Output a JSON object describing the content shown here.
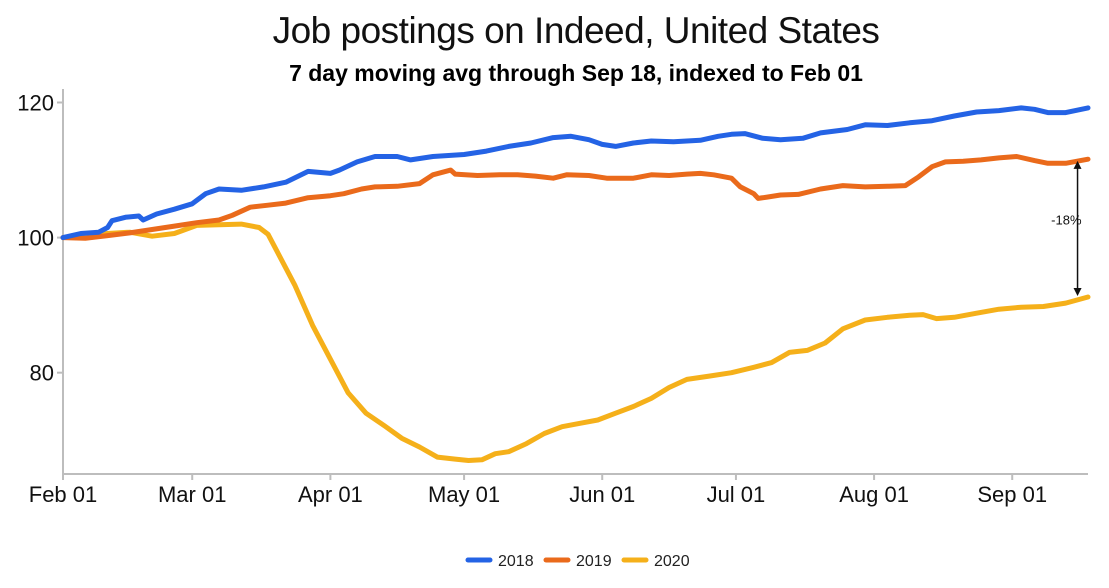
{
  "chart_data": {
    "type": "line",
    "title": "Job postings on Indeed, United States",
    "subtitle": "7 day moving avg through Sep 18, indexed to Feb 01",
    "xlabel": "",
    "ylabel": "",
    "x_range_days": [
      0,
      230
    ],
    "ylim": [
      65,
      122
    ],
    "x_ticks": [
      {
        "label": "Feb 01",
        "day": 0
      },
      {
        "label": "Mar 01",
        "day": 29
      },
      {
        "label": "Apr 01",
        "day": 60
      },
      {
        "label": "May 01",
        "day": 90
      },
      {
        "label": "Jun 01",
        "day": 121
      },
      {
        "label": "Jul 01",
        "day": 151
      },
      {
        "label": "Aug 01",
        "day": 182
      },
      {
        "label": "Sep 01",
        "day": 213
      }
    ],
    "y_ticks": [
      {
        "label": "80",
        "value": 80
      },
      {
        "label": "100",
        "value": 100
      },
      {
        "label": "120",
        "value": 120
      }
    ],
    "grid": false,
    "legend_position": "bottom",
    "series": [
      {
        "name": "2018",
        "color": "#2463e5",
        "points": [
          [
            0,
            100
          ],
          [
            4,
            100.6
          ],
          [
            8,
            100.8
          ],
          [
            10,
            101.5
          ],
          [
            11,
            102.5
          ],
          [
            14,
            103
          ],
          [
            17,
            103.2
          ],
          [
            18,
            102.6
          ],
          [
            21,
            103.5
          ],
          [
            25,
            104.2
          ],
          [
            29,
            105
          ],
          [
            32,
            106.5
          ],
          [
            35,
            107.2
          ],
          [
            40,
            107
          ],
          [
            45,
            107.5
          ],
          [
            50,
            108.2
          ],
          [
            55,
            109.8
          ],
          [
            60,
            109.5
          ],
          [
            62,
            110
          ],
          [
            66,
            111.2
          ],
          [
            70,
            112
          ],
          [
            75,
            112
          ],
          [
            78,
            111.5
          ],
          [
            83,
            112
          ],
          [
            90,
            112.3
          ],
          [
            95,
            112.8
          ],
          [
            100,
            113.5
          ],
          [
            105,
            114
          ],
          [
            110,
            114.8
          ],
          [
            114,
            115
          ],
          [
            118,
            114.5
          ],
          [
            121,
            113.8
          ],
          [
            124,
            113.5
          ],
          [
            128,
            114
          ],
          [
            132,
            114.3
          ],
          [
            137,
            114.2
          ],
          [
            143,
            114.4
          ],
          [
            147,
            115
          ],
          [
            150,
            115.3
          ],
          [
            153,
            115.4
          ],
          [
            157,
            114.7
          ],
          [
            161,
            114.5
          ],
          [
            166,
            114.7
          ],
          [
            170,
            115.5
          ],
          [
            176,
            116
          ],
          [
            180,
            116.7
          ],
          [
            185,
            116.6
          ],
          [
            190,
            117
          ],
          [
            195,
            117.3
          ],
          [
            200,
            118
          ],
          [
            205,
            118.6
          ],
          [
            210,
            118.8
          ],
          [
            215,
            119.2
          ],
          [
            218,
            119
          ],
          [
            221,
            118.5
          ],
          [
            225,
            118.5
          ],
          [
            230,
            119.2
          ]
        ]
      },
      {
        "name": "2019",
        "color": "#ea6a1b",
        "points": [
          [
            0,
            100
          ],
          [
            5,
            99.9
          ],
          [
            10,
            100.3
          ],
          [
            15,
            100.7
          ],
          [
            20,
            101.2
          ],
          [
            25,
            101.7
          ],
          [
            30,
            102.2
          ],
          [
            35,
            102.6
          ],
          [
            38,
            103.3
          ],
          [
            42,
            104.5
          ],
          [
            46,
            104.8
          ],
          [
            50,
            105.1
          ],
          [
            55,
            105.9
          ],
          [
            60,
            106.2
          ],
          [
            63,
            106.5
          ],
          [
            67,
            107.2
          ],
          [
            70,
            107.5
          ],
          [
            75,
            107.6
          ],
          [
            80,
            108
          ],
          [
            83,
            109.3
          ],
          [
            87,
            110
          ],
          [
            88,
            109.4
          ],
          [
            93,
            109.2
          ],
          [
            98,
            109.3
          ],
          [
            102,
            109.3
          ],
          [
            106,
            109.1
          ],
          [
            110,
            108.8
          ],
          [
            113,
            109.3
          ],
          [
            118,
            109.2
          ],
          [
            122,
            108.8
          ],
          [
            128,
            108.8
          ],
          [
            132,
            109.3
          ],
          [
            136,
            109.2
          ],
          [
            140,
            109.4
          ],
          [
            143,
            109.5
          ],
          [
            146,
            109.3
          ],
          [
            150,
            108.8
          ],
          [
            152,
            107.5
          ],
          [
            155,
            106.5
          ],
          [
            156,
            105.8
          ],
          [
            158,
            106
          ],
          [
            161,
            106.3
          ],
          [
            165,
            106.4
          ],
          [
            170,
            107.2
          ],
          [
            175,
            107.7
          ],
          [
            180,
            107.5
          ],
          [
            185,
            107.6
          ],
          [
            189,
            107.7
          ],
          [
            192,
            109
          ],
          [
            195,
            110.5
          ],
          [
            198,
            111.2
          ],
          [
            202,
            111.3
          ],
          [
            206,
            111.5
          ],
          [
            210,
            111.8
          ],
          [
            214,
            112
          ],
          [
            218,
            111.4
          ],
          [
            221,
            111
          ],
          [
            225,
            111
          ],
          [
            230,
            111.6
          ]
        ]
      },
      {
        "name": "2020",
        "color": "#f5b01a",
        "points": [
          [
            0,
            100
          ],
          [
            5,
            100.4
          ],
          [
            10,
            100.6
          ],
          [
            15,
            100.8
          ],
          [
            20,
            100.2
          ],
          [
            25,
            100.6
          ],
          [
            30,
            101.8
          ],
          [
            35,
            101.9
          ],
          [
            40,
            102
          ],
          [
            44,
            101.5
          ],
          [
            46,
            100.5
          ],
          [
            48,
            98
          ],
          [
            52,
            93
          ],
          [
            56,
            87
          ],
          [
            60,
            82
          ],
          [
            64,
            77
          ],
          [
            68,
            74
          ],
          [
            72,
            72.2
          ],
          [
            76,
            70.3
          ],
          [
            80,
            69
          ],
          [
            84,
            67.5
          ],
          [
            88,
            67.2
          ],
          [
            91,
            67
          ],
          [
            94,
            67.1
          ],
          [
            97,
            68
          ],
          [
            100,
            68.3
          ],
          [
            104,
            69.5
          ],
          [
            108,
            71
          ],
          [
            112,
            72
          ],
          [
            116,
            72.5
          ],
          [
            120,
            73
          ],
          [
            124,
            74
          ],
          [
            128,
            75
          ],
          [
            132,
            76.2
          ],
          [
            136,
            77.8
          ],
          [
            140,
            79
          ],
          [
            145,
            79.5
          ],
          [
            150,
            80
          ],
          [
            155,
            80.8
          ],
          [
            159,
            81.5
          ],
          [
            163,
            83
          ],
          [
            167,
            83.3
          ],
          [
            171,
            84.4
          ],
          [
            175,
            86.5
          ],
          [
            180,
            87.8
          ],
          [
            185,
            88.2
          ],
          [
            190,
            88.5
          ],
          [
            193,
            88.6
          ],
          [
            196,
            88
          ],
          [
            200,
            88.2
          ],
          [
            205,
            88.8
          ],
          [
            210,
            89.4
          ],
          [
            215,
            89.7
          ],
          [
            220,
            89.8
          ],
          [
            225,
            90.3
          ],
          [
            230,
            91.2
          ]
        ]
      }
    ],
    "annotation": {
      "label": "-18%",
      "day": 229,
      "from_value": 111.5,
      "to_value": 91.2
    }
  }
}
